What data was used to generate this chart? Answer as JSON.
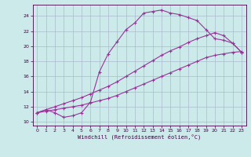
{
  "xlabel": "Windchill (Refroidissement éolien,°C)",
  "background_color": "#cceaea",
  "grid_color": "#aabbcc",
  "line_color": "#993399",
  "xlim": [
    -0.5,
    23.5
  ],
  "ylim": [
    9.5,
    25.5
  ],
  "xticks": [
    0,
    1,
    2,
    3,
    4,
    5,
    6,
    7,
    8,
    9,
    10,
    11,
    12,
    13,
    14,
    15,
    16,
    17,
    18,
    19,
    20,
    21,
    22,
    23
  ],
  "yticks": [
    10,
    12,
    14,
    16,
    18,
    20,
    22,
    24
  ],
  "curve1_x": [
    0,
    1,
    2,
    3,
    4,
    5,
    6,
    7,
    8,
    9,
    10,
    11,
    12,
    13,
    14,
    15,
    16,
    17,
    18,
    19,
    20,
    21,
    22,
    23
  ],
  "curve1_y": [
    11.2,
    11.6,
    11.2,
    10.6,
    10.8,
    11.2,
    12.6,
    16.6,
    19.0,
    20.6,
    22.2,
    23.1,
    24.4,
    24.6,
    24.8,
    24.4,
    24.2,
    23.8,
    23.4,
    22.2,
    21.0,
    20.8,
    20.4,
    19.2
  ],
  "curve2_x": [
    0,
    1,
    2,
    3,
    4,
    5,
    6,
    7,
    8,
    9,
    10,
    11,
    12,
    13,
    14,
    15,
    16,
    17,
    18,
    19,
    20,
    21,
    22,
    23
  ],
  "curve2_y": [
    11.2,
    11.4,
    11.6,
    11.8,
    12.0,
    12.2,
    12.5,
    12.8,
    13.1,
    13.5,
    14.0,
    14.5,
    15.0,
    15.5,
    16.0,
    16.5,
    17.0,
    17.5,
    18.0,
    18.5,
    18.8,
    19.0,
    19.2,
    19.3
  ],
  "curve3_x": [
    0,
    1,
    2,
    3,
    4,
    5,
    6,
    7,
    8,
    9,
    10,
    11,
    12,
    13,
    14,
    15,
    16,
    17,
    18,
    19,
    20,
    21,
    22,
    23
  ],
  "curve3_y": [
    11.2,
    11.6,
    12.0,
    12.4,
    12.8,
    13.2,
    13.7,
    14.2,
    14.7,
    15.3,
    16.0,
    16.7,
    17.4,
    18.1,
    18.8,
    19.4,
    19.9,
    20.5,
    21.0,
    21.4,
    21.8,
    21.4,
    20.4,
    19.2
  ]
}
